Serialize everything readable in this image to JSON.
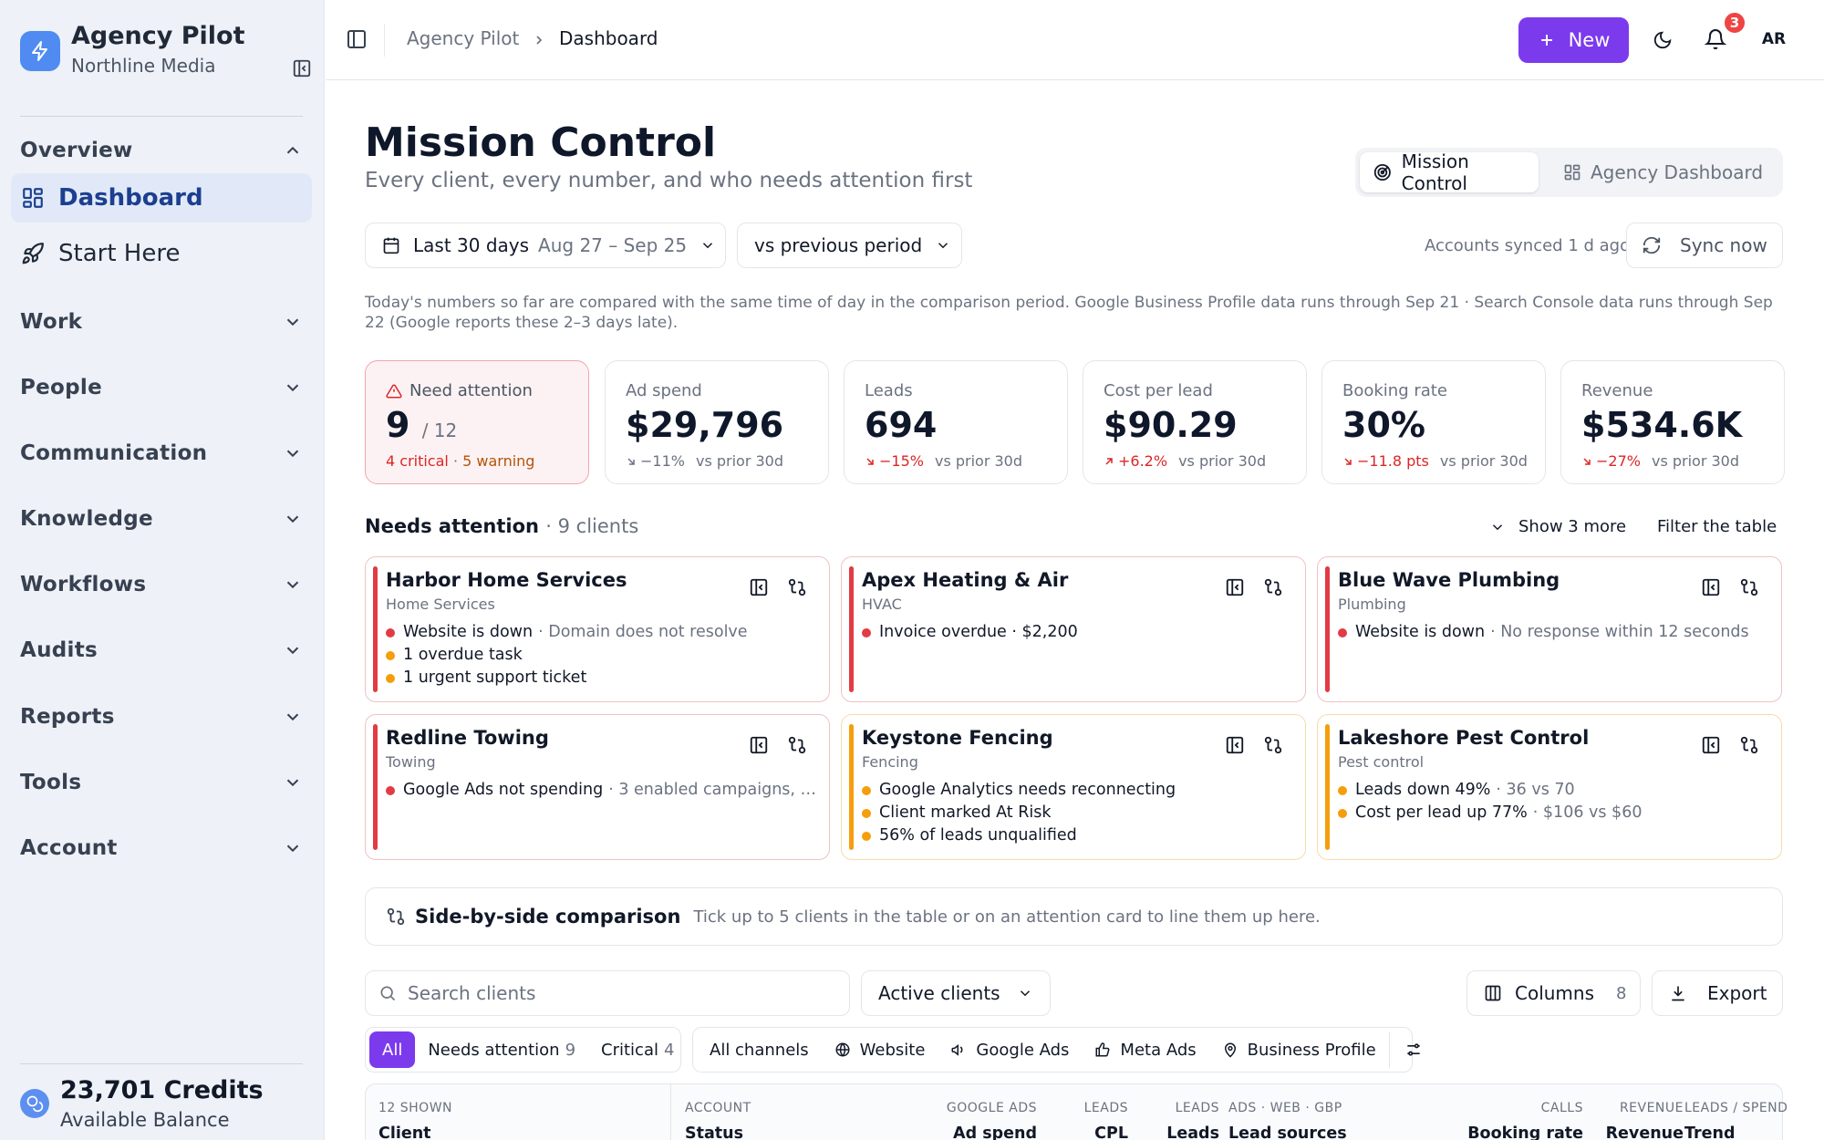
{
  "brand": {
    "name": "Agency Pilot",
    "workspace": "Northline Media"
  },
  "sidebar": {
    "overview_label": "Overview",
    "items": [
      {
        "label": "Dashboard",
        "icon": "grid-icon",
        "active": true
      },
      {
        "label": "Start Here",
        "icon": "rocket-icon",
        "active": false
      }
    ],
    "groups": [
      "Work",
      "People",
      "Communication",
      "Knowledge",
      "Workflows",
      "Audits",
      "Reports",
      "Tools",
      "Account"
    ],
    "credits": {
      "value": "23,701 Credits",
      "label": "Available Balance"
    }
  },
  "topbar": {
    "breadcrumb": [
      "Agency Pilot",
      "Dashboard"
    ],
    "new_label": "New",
    "notifications": "3",
    "avatar": "AR"
  },
  "page": {
    "title": "Mission Control",
    "subtitle": "Every client, every number, and who needs attention first",
    "views": [
      "Mission Control",
      "Agency Dashboard"
    ]
  },
  "filters": {
    "range_label": "Last 30 days",
    "range_dates": "Aug 27 – Sep 25",
    "compare": "vs previous period",
    "sync_note": "Accounts synced 1 d ago",
    "sync_label": "Sync now",
    "info": "Today's numbers so far are compared with the same time of day in the comparison period. Google Business Profile data runs through Sep 21 · Search Console data runs through Sep 22 (Google reports these 2–3 days late)."
  },
  "kpis": {
    "attention": {
      "label": "Need attention",
      "value": "9",
      "total": "/ 12",
      "critical": "4 critical",
      "sep": " · ",
      "warning": "5 warning"
    },
    "cards": [
      {
        "label": "Ad spend",
        "value": "$29,796",
        "delta": "−11%",
        "vs": "vs prior 30d",
        "tone": "neutral",
        "dir": "down"
      },
      {
        "label": "Leads",
        "value": "694",
        "delta": "−15%",
        "vs": "vs prior 30d",
        "tone": "bad",
        "dir": "down"
      },
      {
        "label": "Cost per lead",
        "value": "$90.29",
        "delta": "+6.2%",
        "vs": "vs prior 30d",
        "tone": "bad",
        "dir": "up"
      },
      {
        "label": "Booking rate",
        "value": "30%",
        "delta": "−11.8 pts",
        "vs": "vs prior 30d",
        "tone": "bad",
        "dir": "down"
      },
      {
        "label": "Revenue",
        "value": "$534.6K",
        "delta": "−27%",
        "vs": "vs prior 30d",
        "tone": "bad",
        "dir": "down"
      }
    ]
  },
  "needs_attention": {
    "title": "Needs attention",
    "count": "· 9 clients",
    "show_more": "Show 3 more",
    "filter": "Filter the table",
    "cards": [
      {
        "name": "Harbor Home Services",
        "category": "Home Services",
        "level": "critical",
        "issues": [
          {
            "text": "Website is down",
            "detail": "· Domain does not resolve",
            "sev": "critical"
          },
          {
            "text": "1 overdue task",
            "detail": "",
            "sev": "warning"
          },
          {
            "text": "1 urgent support ticket",
            "detail": "",
            "sev": "warning"
          }
        ]
      },
      {
        "name": "Apex Heating & Air",
        "category": "HVAC",
        "level": "critical",
        "issues": [
          {
            "text": "Invoice overdue · $2,200",
            "detail": "",
            "sev": "critical"
          }
        ]
      },
      {
        "name": "Blue Wave Plumbing",
        "category": "Plumbing",
        "level": "critical",
        "issues": [
          {
            "text": "Website is down",
            "detail": "· No response within 12 seconds",
            "sev": "critical"
          }
        ]
      },
      {
        "name": "Redline Towing",
        "category": "Towing",
        "level": "critical",
        "issues": [
          {
            "text": "Google Ads not spending",
            "detail": "· 3 enabled campaigns, n...",
            "sev": "critical"
          }
        ]
      },
      {
        "name": "Keystone Fencing",
        "category": "Fencing",
        "level": "warning",
        "issues": [
          {
            "text": "Google Analytics needs reconnecting",
            "detail": "",
            "sev": "warning"
          },
          {
            "text": "Client marked At Risk",
            "detail": "",
            "sev": "warning"
          },
          {
            "text": "56% of leads unqualified",
            "detail": "",
            "sev": "warning"
          }
        ]
      },
      {
        "name": "Lakeshore Pest Control",
        "category": "Pest control",
        "level": "warning",
        "issues": [
          {
            "text": "Leads down 49%",
            "detail": "· 36 vs 70",
            "sev": "warning"
          },
          {
            "text": "Cost per lead up 77%",
            "detail": "· $106 vs $60",
            "sev": "warning"
          }
        ]
      }
    ]
  },
  "comparison": {
    "title": "Side-by-side comparison",
    "desc": "Tick up to 5 clients in the table or on an attention card to line them up here."
  },
  "table_controls": {
    "search_placeholder": "Search clients",
    "status_select": "Active clients",
    "columns_label": "Columns",
    "columns_count": "8",
    "export_label": "Export",
    "status_tabs": [
      {
        "label": "All",
        "count": ""
      },
      {
        "label": "Needs attention",
        "count": "9"
      },
      {
        "label": "Critical",
        "count": "4"
      }
    ],
    "channels": [
      "All channels",
      "Website",
      "Google Ads",
      "Meta Ads",
      "Business Profile"
    ]
  },
  "table": {
    "shown": "12 SHOWN",
    "columns": [
      {
        "group": "",
        "label": "Client"
      },
      {
        "group": "ACCOUNT",
        "label": "Status"
      },
      {
        "group": "GOOGLE ADS",
        "label": "Ad spend"
      },
      {
        "group": "LEADS",
        "label": "CPL"
      },
      {
        "group": "LEADS",
        "label": "Leads"
      },
      {
        "group": "ADS · WEB · GBP",
        "label": "Lead sources"
      },
      {
        "group": "CALLS",
        "label": "Booking rate"
      },
      {
        "group": "REVENUE",
        "label": "Revenue"
      },
      {
        "group": "LEADS / SPEND",
        "label": "Trend"
      }
    ]
  },
  "colors": {
    "accent": "#7c3aed",
    "critical": "#e23b44",
    "warning": "#f59e0b",
    "sidebar_bg": "#eef1f7"
  }
}
